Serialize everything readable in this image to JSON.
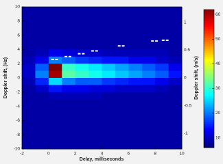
{
  "chart_data": {
    "type": "heatmap",
    "x_label": "Delay, milliseconds",
    "y_label": "Doppler shift, (Hz)",
    "y2_label": "Doppler shift, (m/s)",
    "xlim": [
      -2,
      10
    ],
    "xticks": [
      -2,
      0,
      2,
      4,
      6,
      8,
      10
    ],
    "ylim": [
      -10,
      10
    ],
    "yticks": [
      -10,
      -8,
      -6,
      -4,
      -2,
      0,
      2,
      4,
      6,
      8,
      10
    ],
    "y2lim": [
      -1.28,
      1.28
    ],
    "y2ticks": [
      -1,
      -0.5,
      0,
      0.5,
      1
    ],
    "clim": [
      6,
      62
    ],
    "cticks": [
      10,
      20,
      30,
      40,
      50,
      60
    ],
    "colormap": "jet",
    "z": [
      [
        8,
        8,
        8,
        8,
        8,
        8,
        8,
        8,
        8,
        8,
        8,
        8
      ],
      [
        8,
        8,
        8,
        8,
        8,
        8,
        8,
        8,
        8,
        8,
        8,
        8
      ],
      [
        8,
        8,
        8,
        8,
        8,
        8,
        8,
        8,
        8,
        8,
        8,
        8
      ],
      [
        8,
        8,
        8,
        8,
        8,
        8,
        8,
        8,
        8,
        8,
        8,
        8
      ],
      [
        8,
        8,
        8,
        8,
        8,
        8,
        8,
        8,
        8,
        8,
        8,
        8
      ],
      [
        8,
        8,
        8,
        8,
        8,
        8,
        8,
        8,
        8,
        8,
        8,
        8
      ],
      [
        8,
        9,
        12,
        11,
        10,
        10,
        9,
        9,
        9,
        9,
        9,
        8
      ],
      [
        9,
        12,
        20,
        18,
        16,
        15,
        14,
        14,
        12,
        12,
        10,
        9
      ],
      [
        10,
        18,
        62,
        30,
        28,
        26,
        24,
        22,
        20,
        18,
        16,
        12
      ],
      [
        10,
        20,
        60,
        32,
        30,
        28,
        26,
        24,
        22,
        20,
        18,
        14
      ],
      [
        9,
        15,
        25,
        20,
        18,
        18,
        16,
        15,
        14,
        14,
        12,
        10
      ],
      [
        8,
        10,
        14,
        12,
        12,
        11,
        11,
        10,
        10,
        10,
        9,
        8
      ],
      [
        8,
        8,
        9,
        9,
        9,
        9,
        8,
        8,
        8,
        8,
        8,
        8
      ],
      [
        8,
        8,
        8,
        8,
        8,
        8,
        8,
        8,
        8,
        8,
        8,
        8
      ],
      [
        8,
        8,
        8,
        8,
        8,
        8,
        8,
        8,
        8,
        8,
        8,
        8
      ],
      [
        8,
        8,
        8,
        8,
        8,
        8,
        8,
        8,
        8,
        8,
        8,
        8
      ],
      [
        8,
        8,
        8,
        8,
        8,
        8,
        8,
        8,
        8,
        8,
        8,
        8
      ],
      [
        8,
        8,
        8,
        8,
        8,
        8,
        8,
        8,
        8,
        8,
        8,
        8
      ],
      [
        8,
        8,
        8,
        8,
        8,
        8,
        8,
        8,
        8,
        8,
        8,
        8
      ],
      [
        8,
        8,
        8,
        8,
        8,
        8,
        8,
        8,
        8,
        8,
        8,
        8
      ]
    ],
    "markers": {
      "color": "#ffffff",
      "x": [
        0.3,
        0.6,
        1.3,
        1.6,
        2.3,
        2.6,
        3.3,
        3.6,
        5.3,
        5.6,
        7.8,
        8.1,
        8.6,
        8.9
      ],
      "y": [
        2.6,
        2.6,
        3.0,
        3.0,
        3.4,
        3.4,
        3.8,
        3.8,
        4.5,
        4.5,
        5.2,
        5.2,
        5.3,
        5.3
      ]
    }
  }
}
